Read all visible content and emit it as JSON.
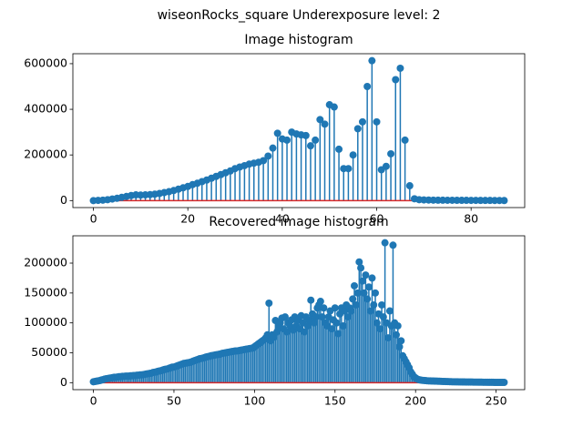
{
  "title": "wiseonRocks_square Underexposure level: 2",
  "chart_data": [
    {
      "type": "stem",
      "title": "Image histogram",
      "color": "#1f77b4",
      "baseline_color": "#d62728",
      "x": [
        0,
        1,
        2,
        3,
        4,
        5,
        6,
        7,
        8,
        9,
        10,
        11,
        12,
        13,
        14,
        15,
        16,
        17,
        18,
        19,
        20,
        21,
        22,
        23,
        24,
        25,
        26,
        27,
        28,
        29,
        30,
        31,
        32,
        33,
        34,
        35,
        36,
        37,
        38,
        39,
        40,
        41,
        42,
        43,
        44,
        45,
        46,
        47,
        48,
        49,
        50,
        51,
        52,
        53,
        54,
        55,
        56,
        57,
        58,
        59,
        60,
        61,
        62,
        63,
        64,
        65,
        66,
        67,
        68,
        69,
        70,
        71,
        72,
        73,
        74,
        75,
        76,
        77,
        78,
        79,
        80,
        81,
        82,
        83,
        84,
        85,
        86,
        87
      ],
      "values": [
        0,
        1000,
        2000,
        4000,
        7000,
        10000,
        14000,
        18000,
        22000,
        25000,
        24000,
        25000,
        26000,
        28000,
        31000,
        35000,
        39000,
        44000,
        50000,
        56000,
        62000,
        70000,
        76000,
        83000,
        90000,
        98000,
        106000,
        114000,
        122000,
        130000,
        140000,
        147000,
        153000,
        160000,
        164000,
        168000,
        175000,
        195000,
        230000,
        295000,
        270000,
        265000,
        300000,
        292000,
        288000,
        285000,
        240000,
        265000,
        355000,
        335000,
        420000,
        410000,
        225000,
        140000,
        140000,
        200000,
        315000,
        345000,
        500000,
        613000,
        345000,
        135000,
        150000,
        205000,
        530000,
        580000,
        265000,
        65000,
        8000,
        4000,
        3000,
        2500,
        2000,
        1800,
        1600,
        1500,
        1400,
        1300,
        1200,
        1100,
        1000,
        900,
        800,
        700,
        600,
        500,
        400,
        300
      ],
      "xlim": [
        -4.35,
        91.35
      ],
      "ylim": [
        -30650,
        643650
      ],
      "xticks": [
        0,
        20,
        40,
        60,
        80
      ],
      "yticks": [
        0,
        200000,
        400000,
        600000
      ]
    },
    {
      "type": "stem",
      "title": "Recovered image histogram",
      "color": "#1f77b4",
      "baseline_color": "#d62728",
      "x": [
        0,
        1,
        2,
        3,
        4,
        5,
        6,
        7,
        8,
        9,
        10,
        11,
        12,
        13,
        14,
        15,
        16,
        17,
        18,
        19,
        20,
        21,
        22,
        23,
        24,
        25,
        26,
        27,
        28,
        29,
        30,
        31,
        32,
        33,
        34,
        35,
        36,
        37,
        38,
        39,
        40,
        41,
        42,
        43,
        44,
        45,
        46,
        47,
        48,
        49,
        50,
        51,
        52,
        53,
        54,
        55,
        56,
        57,
        58,
        59,
        60,
        61,
        62,
        63,
        64,
        65,
        66,
        67,
        68,
        69,
        70,
        71,
        72,
        73,
        74,
        75,
        76,
        77,
        78,
        79,
        80,
        81,
        82,
        83,
        84,
        85,
        86,
        87,
        88,
        89,
        90,
        91,
        92,
        93,
        94,
        95,
        96,
        97,
        98,
        99,
        100,
        101,
        102,
        103,
        104,
        105,
        106,
        107,
        108,
        109,
        110,
        111,
        112,
        113,
        114,
        115,
        116,
        117,
        118,
        119,
        120,
        121,
        122,
        123,
        124,
        125,
        126,
        127,
        128,
        129,
        130,
        131,
        132,
        133,
        134,
        135,
        136,
        137,
        138,
        139,
        140,
        141,
        142,
        143,
        144,
        145,
        146,
        147,
        148,
        149,
        150,
        151,
        152,
        153,
        154,
        155,
        156,
        157,
        158,
        159,
        160,
        161,
        162,
        163,
        164,
        165,
        166,
        167,
        168,
        169,
        170,
        171,
        172,
        173,
        174,
        175,
        176,
        177,
        178,
        179,
        180,
        181,
        182,
        183,
        184,
        185,
        186,
        187,
        188,
        189,
        190,
        191,
        192,
        193,
        194,
        195,
        196,
        197,
        198,
        199,
        200,
        201,
        202,
        203,
        204,
        205,
        206,
        207,
        208,
        209,
        210,
        211,
        212,
        213,
        214,
        215,
        216,
        217,
        218,
        219,
        220,
        221,
        222,
        223,
        224,
        225,
        226,
        227,
        228,
        229,
        230,
        231,
        232,
        233,
        234,
        235,
        236,
        237,
        238,
        239,
        240,
        241,
        242,
        243,
        244,
        245,
        246,
        247,
        248,
        249,
        250,
        251,
        252,
        253,
        254,
        255
      ],
      "values": [
        1500,
        2000,
        2500,
        3000,
        3500,
        4500,
        5000,
        6000,
        6500,
        7000,
        7500,
        8000,
        8500,
        9000,
        9000,
        9500,
        10000,
        10000,
        10500,
        10500,
        11000,
        11000,
        11000,
        11500,
        11500,
        12000,
        12000,
        12500,
        12500,
        13000,
        13000,
        13500,
        14000,
        14500,
        15000,
        15500,
        16000,
        17000,
        17500,
        18000,
        19000,
        19500,
        20000,
        21000,
        22000,
        22500,
        23000,
        24000,
        25000,
        26000,
        26000,
        27000,
        28000,
        29000,
        30000,
        31000,
        32000,
        32500,
        33000,
        33500,
        34000,
        35000,
        36000,
        37000,
        38000,
        39000,
        40000,
        40500,
        41000,
        42000,
        43000,
        43500,
        44000,
        45000,
        45500,
        46000,
        46500,
        47000,
        47500,
        48000,
        49000,
        49500,
        50000,
        50500,
        51000,
        51500,
        52000,
        52500,
        53000,
        53000,
        53500,
        54000,
        54500,
        55000,
        55500,
        56000,
        56500,
        57000,
        57500,
        58000,
        60000,
        62000,
        64000,
        66000,
        68000,
        70000,
        72000,
        75000,
        80000,
        133000,
        70000,
        80000,
        76000,
        104000,
        85000,
        95000,
        100000,
        108000,
        90000,
        110000,
        85000,
        100000,
        95000,
        105000,
        88000,
        110000,
        95000,
        105000,
        90000,
        112000,
        100000,
        85000,
        110000,
        95000,
        105000,
        138000,
        115000,
        100000,
        110000,
        125000,
        130000,
        136000,
        110000,
        125000,
        100000,
        95000,
        110000,
        120000,
        90000,
        105000,
        125000,
        100000,
        82000,
        115000,
        125000,
        95000,
        120000,
        130000,
        110000,
        125000,
        120000,
        140000,
        162000,
        130000,
        150000,
        202000,
        192000,
        170000,
        150000,
        180000,
        140000,
        160000,
        120000,
        175000,
        130000,
        150000,
        100000,
        115000,
        90000,
        130000,
        110000,
        234000,
        100000,
        75000,
        120000,
        95000,
        230000,
        100000,
        80000,
        95000,
        60000,
        70000,
        45000,
        40000,
        35000,
        30000,
        25000,
        18000,
        14000,
        10000,
        8000,
        6000,
        5000,
        4500,
        4000,
        3800,
        3500,
        3200,
        3000,
        2900,
        2800,
        2700,
        2600,
        2500,
        2400,
        2300,
        2200,
        2100,
        2000,
        1900,
        1800,
        1700,
        1600,
        1500,
        1500,
        1400,
        1400,
        1300,
        1300,
        1200,
        1200,
        1100,
        1100,
        1000,
        1000,
        1000,
        900,
        900,
        900,
        800,
        800,
        800,
        700,
        700,
        700,
        600,
        600,
        600,
        600,
        500,
        500,
        500,
        500,
        500,
        500,
        500
      ],
      "xlim": [
        -12.75,
        267.75
      ],
      "ylim": [
        -11700,
        245700
      ],
      "xticks": [
        0,
        50,
        100,
        150,
        200,
        250
      ],
      "yticks": [
        0,
        50000,
        100000,
        150000,
        200000
      ]
    }
  ]
}
